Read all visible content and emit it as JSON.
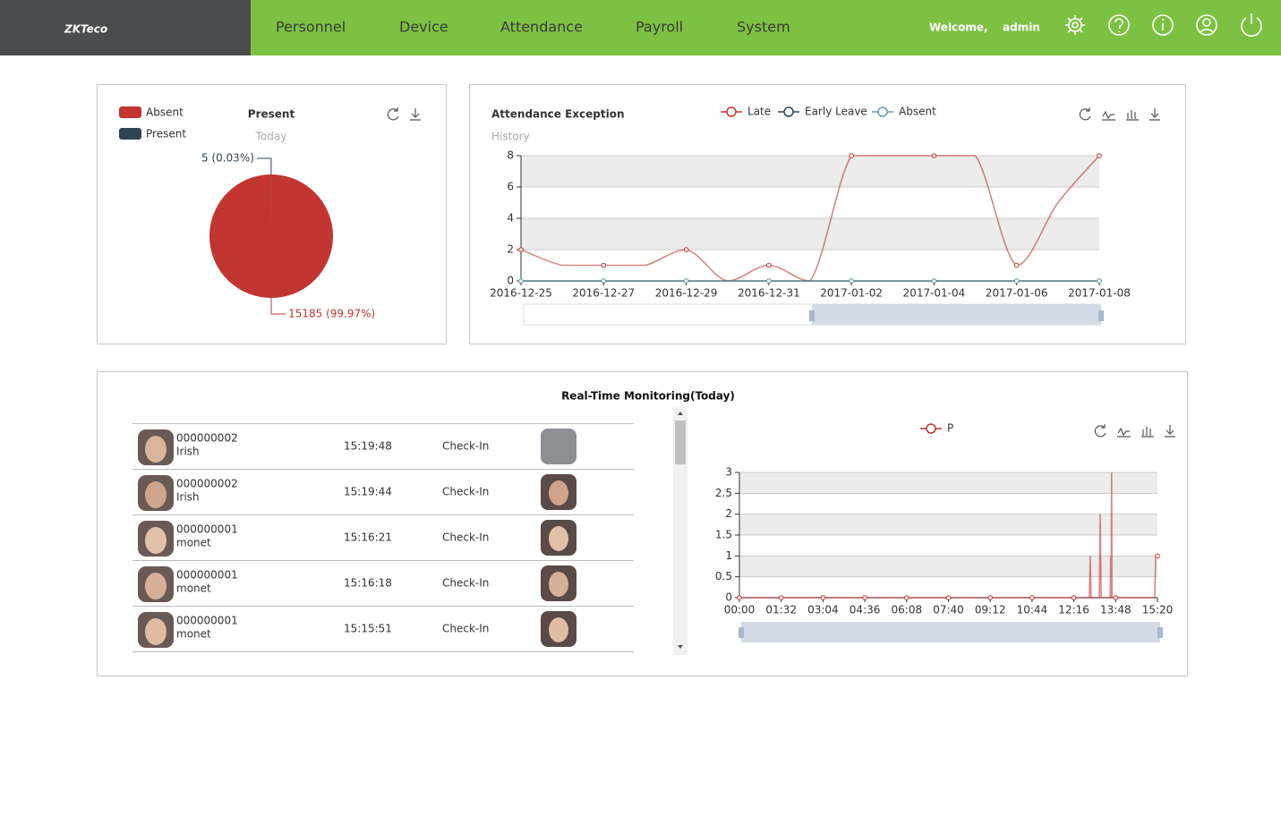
{
  "header": {
    "logo": "ZKTeco",
    "nav": [
      "Personnel",
      "Device",
      "Attendance",
      "Payroll",
      "System"
    ],
    "welcome": "Welcome,",
    "user": "admin"
  },
  "present": {
    "type": "pie",
    "title": "Present",
    "subtitle": "Today",
    "categories": [
      "Absent",
      "Present"
    ],
    "values": [
      15185,
      5
    ],
    "value_labels": [
      "15185 (99.97%)",
      "5 (0.03%)"
    ],
    "colors": [
      "#c23531",
      "#2f4554"
    ]
  },
  "exception": {
    "type": "line",
    "title": "Attendance Exception",
    "subtitle": "History",
    "categories": [
      "2016-12-25",
      null,
      "2016-12-27",
      null,
      "2016-12-29",
      null,
      "2016-12-31",
      null,
      "2017-01-02",
      null,
      "2017-01-04",
      null,
      "2017-01-06",
      null,
      "2017-01-08"
    ],
    "series": [
      {
        "name": "Late",
        "color": "#c23531",
        "values": [
          2,
          1,
          1,
          1,
          2,
          0,
          1,
          0,
          8,
          8,
          8,
          8,
          1,
          5,
          8
        ]
      },
      {
        "name": "Early Leave",
        "color": "#2f4554",
        "values": [
          0,
          0,
          0,
          0,
          0,
          0,
          0,
          0,
          0,
          0,
          0,
          0,
          0,
          0,
          0
        ]
      },
      {
        "name": "Absent",
        "color": "#61a0a8",
        "values": [
          0,
          0,
          0,
          0,
          0,
          0,
          0,
          0,
          0,
          0,
          0,
          0,
          0,
          0,
          0
        ]
      }
    ],
    "ylim": [
      0,
      8
    ],
    "yticks": [
      0,
      2,
      4,
      6,
      8
    ],
    "grid": true
  },
  "monitoring": {
    "title": "Real-Time Monitoring(Today)",
    "rows": [
      {
        "id": "000000002",
        "name": "Irish",
        "time": "15:19:48",
        "status": "Check-In"
      },
      {
        "id": "000000002",
        "name": "Irish",
        "time": "15:19:44",
        "status": "Check-In"
      },
      {
        "id": "000000001",
        "name": "monet",
        "time": "15:16:21",
        "status": "Check-In"
      },
      {
        "id": "000000001",
        "name": "monet",
        "time": "15:16:18",
        "status": "Check-In"
      },
      {
        "id": "000000001",
        "name": "monet",
        "time": "15:15:51",
        "status": "Check-In"
      }
    ]
  },
  "realtime": {
    "type": "line",
    "x": [
      0,
      92,
      184,
      276,
      368,
      460,
      552,
      644,
      736,
      770,
      772,
      774,
      792,
      794,
      796,
      816,
      817,
      818,
      819,
      820,
      828,
      914,
      916,
      920
    ],
    "series": [
      {
        "name": "P",
        "color": "#c23531",
        "values": [
          0,
          0,
          0,
          0,
          0,
          0,
          0,
          0,
          0,
          0,
          1,
          0,
          0,
          2,
          0,
          0,
          1,
          0,
          3,
          0,
          0,
          0,
          1,
          1
        ]
      }
    ],
    "xlim": [
      0,
      920
    ],
    "xticks": [
      {
        "value": 0,
        "label": "00:00"
      },
      {
        "value": 92,
        "label": "01:32"
      },
      {
        "value": 184,
        "label": "03:04"
      },
      {
        "value": 276,
        "label": "04:36"
      },
      {
        "value": 368,
        "label": "06:08"
      },
      {
        "value": 460,
        "label": "07:40"
      },
      {
        "value": 552,
        "label": "09:12"
      },
      {
        "value": 644,
        "label": "10:44"
      },
      {
        "value": 736,
        "label": "12:16"
      },
      {
        "value": 828,
        "label": "13:48"
      },
      {
        "value": 920,
        "label": "15:20"
      }
    ],
    "ylim": [
      0,
      3
    ],
    "yticks": [
      0,
      0.5,
      1,
      1.5,
      2,
      2.5,
      3
    ],
    "grid": true
  }
}
